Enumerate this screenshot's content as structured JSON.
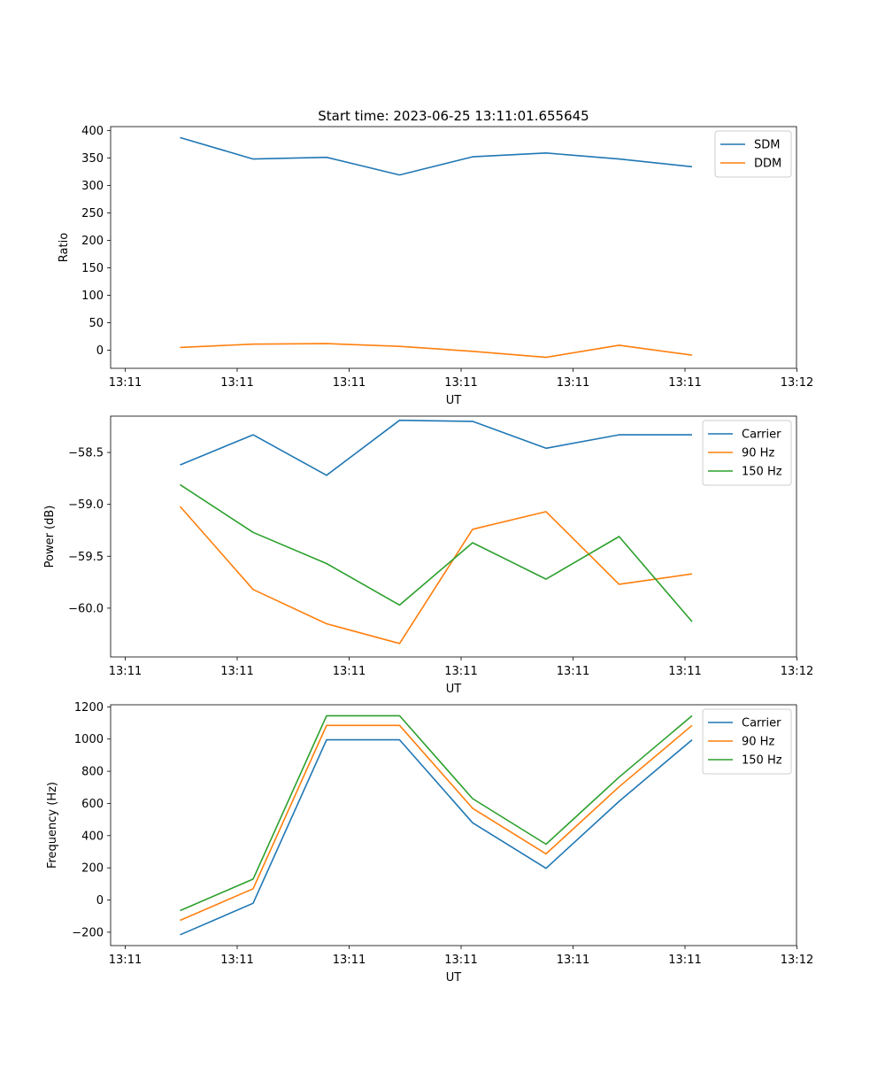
{
  "chart_data": [
    {
      "type": "line",
      "title": "Start time: 2023-06-25 13:11:01.655645",
      "xlabel": "UT",
      "ylabel": "Ratio",
      "x_tick_labels": [
        "13:11",
        "13:11",
        "13:11",
        "13:11",
        "13:11",
        "13:11",
        "13:12"
      ],
      "y_ticks": [
        0,
        50,
        100,
        150,
        200,
        250,
        300,
        350,
        400
      ],
      "y_tick_labels": [
        "0",
        "50",
        "100",
        "150",
        "200",
        "250",
        "300",
        "350",
        "400"
      ],
      "ylim": [
        -33,
        407
      ],
      "legend_position": "top-right",
      "series": [
        {
          "name": "SDM",
          "color": "#1f77b4",
          "values": [
            387,
            348,
            351,
            319,
            352,
            359,
            348,
            334
          ]
        },
        {
          "name": "DDM",
          "color": "#ff7f0e",
          "values": [
            5,
            11,
            12,
            7,
            -2,
            -13,
            9,
            -9
          ]
        }
      ]
    },
    {
      "type": "line",
      "title": "",
      "xlabel": "UT",
      "ylabel": "Power (dB)",
      "x_tick_labels": [
        "13:11",
        "13:11",
        "13:11",
        "13:11",
        "13:11",
        "13:11",
        "13:12"
      ],
      "y_ticks": [
        -60.0,
        -59.5,
        -59.0,
        -58.5
      ],
      "y_tick_labels": [
        "−60.0",
        "−59.5",
        "−59.0",
        "−58.5"
      ],
      "ylim": [
        -60.47,
        -58.15
      ],
      "legend_position": "top-right",
      "series": [
        {
          "name": "Carrier",
          "color": "#1f77b4",
          "values": [
            -58.62,
            -58.33,
            -58.72,
            -58.19,
            -58.2,
            -58.46,
            -58.33,
            -58.33
          ]
        },
        {
          "name": "90 Hz",
          "color": "#ff7f0e",
          "values": [
            -59.02,
            -59.82,
            -60.15,
            -60.34,
            -59.24,
            -59.07,
            -59.77,
            -59.67
          ]
        },
        {
          "name": "150 Hz",
          "color": "#2ca02c",
          "values": [
            -58.81,
            -59.27,
            -59.57,
            -59.97,
            -59.37,
            -59.72,
            -59.31,
            -60.13
          ]
        }
      ]
    },
    {
      "type": "line",
      "title": "",
      "xlabel": "UT",
      "ylabel": "Frequency (Hz)",
      "x_tick_labels": [
        "13:11",
        "13:11",
        "13:11",
        "13:11",
        "13:11",
        "13:11",
        "13:12"
      ],
      "y_ticks": [
        -200,
        0,
        200,
        400,
        600,
        800,
        1000,
        1200
      ],
      "y_tick_labels": [
        "−200",
        "0",
        "200",
        "400",
        "600",
        "800",
        "1000",
        "1200"
      ],
      "ylim": [
        -283,
        1213
      ],
      "legend_position": "top-right",
      "series": [
        {
          "name": "Carrier",
          "color": "#1f77b4",
          "values": [
            -216,
            -20,
            995,
            995,
            480,
            197,
            613,
            995
          ]
        },
        {
          "name": "90 Hz",
          "color": "#ff7f0e",
          "values": [
            -126,
            70,
            1085,
            1085,
            570,
            287,
            703,
            1085
          ]
        },
        {
          "name": "150 Hz",
          "color": "#2ca02c",
          "values": [
            -66,
            130,
            1145,
            1145,
            630,
            347,
            763,
            1145
          ]
        }
      ]
    }
  ]
}
